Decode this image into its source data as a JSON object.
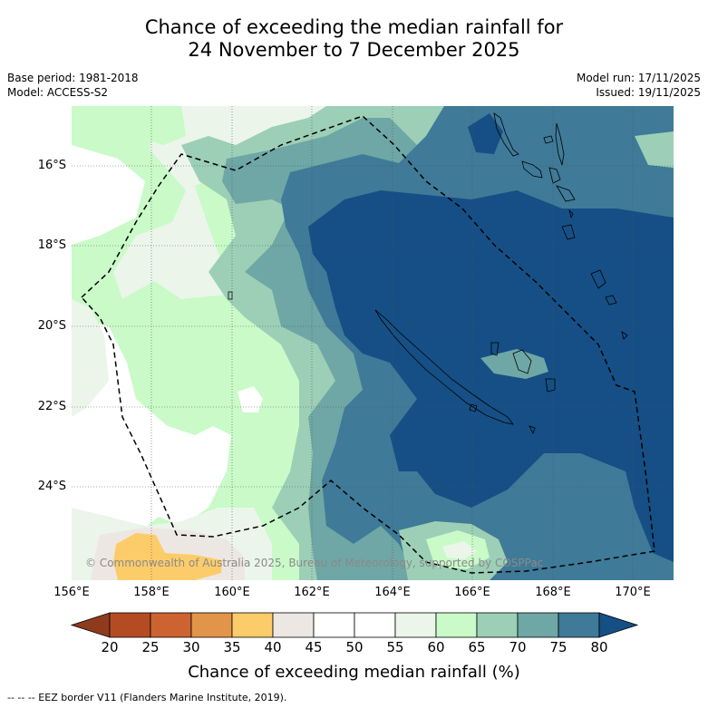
{
  "title": {
    "line1": "Chance of exceeding the median rainfall for",
    "line2": "24 November to 7 December 2025"
  },
  "meta": {
    "base_period": "Base period: 1981-2018",
    "model": "Model: ACCESS-S2",
    "model_run": "Model run: 17/11/2025",
    "issued": "Issued: 19/11/2025"
  },
  "map": {
    "lat_labels": [
      "16°S",
      "18°S",
      "20°S",
      "22°S",
      "24°S"
    ],
    "lon_labels": [
      "156°E",
      "158°E",
      "160°E",
      "162°E",
      "164°E",
      "166°E",
      "168°E",
      "170°E"
    ],
    "copyright": "© Commonwealth of Australia 2025, Bureau of Meteorology, supported by COSPPac"
  },
  "colorbar": {
    "ticks": [
      "20",
      "25",
      "30",
      "35",
      "40",
      "45",
      "50",
      "55",
      "60",
      "65",
      "70",
      "75",
      "80"
    ],
    "colors": [
      "#8e3b1d",
      "#b44b22",
      "#cd6330",
      "#e2944a",
      "#fdcc6a",
      "#ede7e3",
      "#ffffff",
      "#ffffff",
      "#ebf5ea",
      "#c9fac8",
      "#9ccfb6",
      "#6ea7a5",
      "#3f7a98",
      "#154f85"
    ],
    "label": "Chance of exceeding median rainfall (%)"
  },
  "footnote": "--  --  -- EEZ border V11 (Flanders Marine Institute, 2019)."
}
